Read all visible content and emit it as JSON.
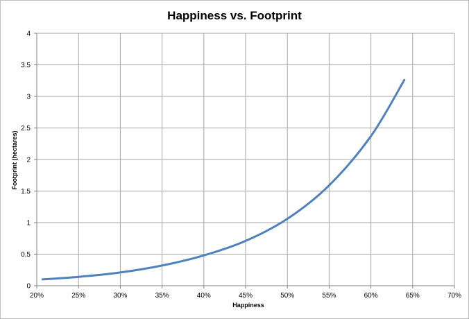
{
  "chart_data": {
    "type": "line",
    "title": "Happiness vs. Footprint",
    "xlabel": "Happiness",
    "ylabel": "Footprint (hectares)",
    "xlim": [
      0.2,
      0.7
    ],
    "ylim": [
      0,
      4
    ],
    "x_ticks": [
      0.2,
      0.25,
      0.3,
      0.35,
      0.4,
      0.45,
      0.5,
      0.55,
      0.6,
      0.65,
      0.7
    ],
    "x_tick_labels": [
      "20%",
      "25%",
      "30%",
      "35%",
      "40%",
      "45%",
      "50%",
      "55%",
      "60%",
      "65%",
      "70%"
    ],
    "y_ticks": [
      0,
      0.5,
      1,
      1.5,
      2,
      2.5,
      3,
      3.5,
      4
    ],
    "y_tick_labels": [
      "0",
      "0.5",
      "1",
      "1.5",
      "2",
      "2.5",
      "3",
      "3.5",
      "4"
    ],
    "grid": true,
    "legend": "none",
    "series": [
      {
        "color": "#4f81bd",
        "x": [
          0.207,
          0.25,
          0.3,
          0.35,
          0.4,
          0.45,
          0.5,
          0.55,
          0.6,
          0.64
        ],
        "y": [
          0.1,
          0.14,
          0.21,
          0.32,
          0.48,
          0.71,
          1.06,
          1.59,
          2.37,
          3.26
        ]
      }
    ]
  }
}
